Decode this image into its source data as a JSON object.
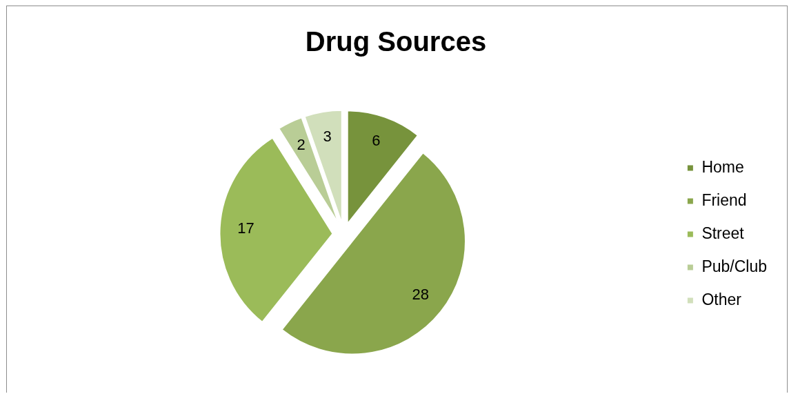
{
  "chart_data": {
    "type": "pie",
    "title": "Drug Sources",
    "categories": [
      "Home",
      "Friend",
      "Street",
      "Pub/Club",
      "Other"
    ],
    "values": [
      6,
      28,
      17,
      2,
      3
    ],
    "colors": [
      "#77933c",
      "#8aa64c",
      "#9bbb59",
      "#b9cd96",
      "#d1dfbb"
    ],
    "data_labels": true,
    "legend": "right"
  }
}
